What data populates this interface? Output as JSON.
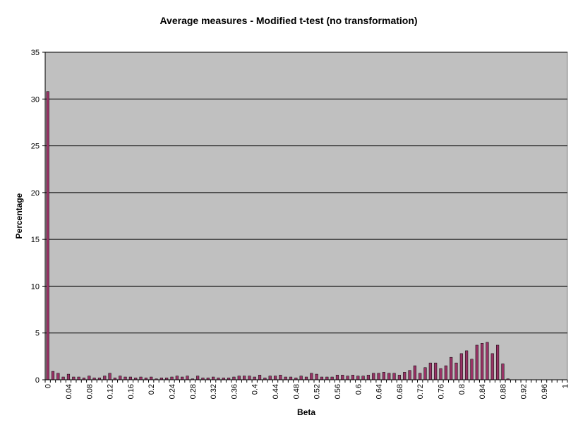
{
  "colors": {
    "plot_background": "#c0c0c0",
    "bar_fill": "#993366",
    "bar_stroke": "#000000",
    "grid": "#000000"
  },
  "chart_data": {
    "type": "bar",
    "title": "Average measures - Modified t-test (no transformation)",
    "xlabel": "Beta",
    "ylabel": "Percentage",
    "ylim": [
      0,
      35
    ],
    "yticks": [
      0,
      5,
      10,
      15,
      20,
      25,
      30,
      35
    ],
    "grid": "horizontal",
    "legend": "none",
    "categories": [
      "0",
      "0.01",
      "0.02",
      "0.03",
      "0.04",
      "0.05",
      "0.06",
      "0.07",
      "0.08",
      "0.09",
      "0.1",
      "0.11",
      "0.12",
      "0.13",
      "0.14",
      "0.15",
      "0.16",
      "0.17",
      "0.18",
      "0.19",
      "0.2",
      "0.21",
      "0.22",
      "0.23",
      "0.24",
      "0.25",
      "0.26",
      "0.27",
      "0.28",
      "0.29",
      "0.3",
      "0.31",
      "0.32",
      "0.33",
      "0.34",
      "0.35",
      "0.36",
      "0.37",
      "0.38",
      "0.39",
      "0.4",
      "0.41",
      "0.42",
      "0.43",
      "0.44",
      "0.45",
      "0.46",
      "0.47",
      "0.48",
      "0.49",
      "0.5",
      "0.51",
      "0.52",
      "0.53",
      "0.54",
      "0.55",
      "0.56",
      "0.57",
      "0.58",
      "0.59",
      "0.6",
      "0.61",
      "0.62",
      "0.63",
      "0.64",
      "0.65",
      "0.66",
      "0.67",
      "0.68",
      "0.69",
      "0.7",
      "0.71",
      "0.72",
      "0.73",
      "0.74",
      "0.75",
      "0.76",
      "0.77",
      "0.78",
      "0.79",
      "0.8",
      "0.81",
      "0.82",
      "0.83",
      "0.84",
      "0.85",
      "0.86",
      "0.87",
      "0.88",
      "0.89",
      "0.9",
      "0.91",
      "0.92",
      "0.93",
      "0.94",
      "0.95",
      "0.96",
      "0.97",
      "0.98",
      "0.99",
      "1"
    ],
    "tick_labels": [
      "0",
      "0.04",
      "0.08",
      "0.12",
      "0.16",
      "0.2",
      "0.24",
      "0.28",
      "0.32",
      "0.36",
      "0.4",
      "0.44",
      "0.48",
      "0.52",
      "0.56",
      "0.6",
      "0.64",
      "0.68",
      "0.72",
      "0.76",
      "0.8",
      "0.84",
      "0.88",
      "0.92",
      "0.96",
      "1"
    ],
    "values": [
      30.8,
      0.9,
      0.7,
      0.3,
      0.6,
      0.3,
      0.3,
      0.2,
      0.4,
      0.2,
      0.2,
      0.4,
      0.7,
      0.2,
      0.4,
      0.3,
      0.3,
      0.2,
      0.3,
      0.2,
      0.3,
      0.1,
      0.2,
      0.2,
      0.3,
      0.4,
      0.3,
      0.4,
      0.1,
      0.4,
      0.2,
      0.2,
      0.3,
      0.2,
      0.2,
      0.2,
      0.3,
      0.4,
      0.4,
      0.4,
      0.3,
      0.5,
      0.2,
      0.4,
      0.4,
      0.5,
      0.3,
      0.3,
      0.2,
      0.4,
      0.3,
      0.7,
      0.6,
      0.3,
      0.3,
      0.3,
      0.5,
      0.5,
      0.4,
      0.5,
      0.4,
      0.4,
      0.5,
      0.7,
      0.7,
      0.8,
      0.7,
      0.7,
      0.5,
      0.8,
      1.0,
      1.5,
      0.7,
      1.3,
      1.8,
      1.8,
      1.2,
      1.5,
      2.4,
      1.8,
      2.8,
      3.1,
      2.2,
      3.7,
      3.9,
      4.0,
      2.8,
      3.7,
      1.7,
      0.1,
      0,
      0,
      0,
      0,
      0,
      0,
      0,
      0,
      0,
      0,
      0
    ]
  }
}
